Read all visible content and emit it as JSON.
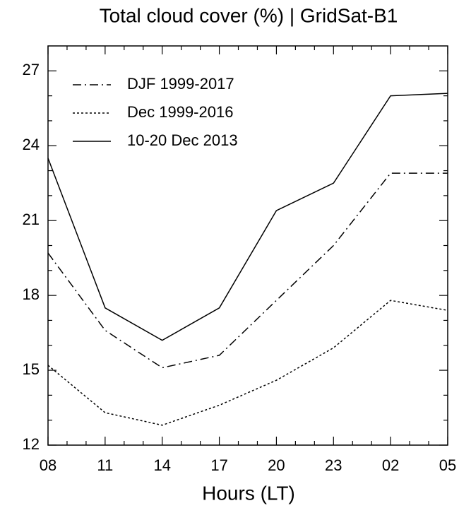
{
  "chart_data": {
    "type": "line",
    "title": "Total cloud cover (%) | GridSat-B1",
    "x_label": "Hours (LT)",
    "categories": [
      "08",
      "11",
      "14",
      "17",
      "20",
      "23",
      "02",
      "05"
    ],
    "series": [
      {
        "name": "DJF 1999-2017",
        "color": "#000000",
        "linestyle": "dashdot",
        "values": [
          19.7,
          16.6,
          15.1,
          15.6,
          17.8,
          20.0,
          22.9,
          22.9
        ]
      },
      {
        "name": "Dec 1999-2016",
        "color": "#000000",
        "linestyle": "dotted",
        "values": [
          15.2,
          13.3,
          12.8,
          13.6,
          14.6,
          15.9,
          17.8,
          17.4
        ]
      },
      {
        "name": "10-20 Dec 2013",
        "color": "#000000",
        "linestyle": "solid",
        "values": [
          23.5,
          17.5,
          16.2,
          17.5,
          21.4,
          22.5,
          26.0,
          26.1
        ]
      }
    ],
    "ylim": [
      12,
      28
    ],
    "yticks": [
      12,
      15,
      18,
      21,
      24,
      27
    ],
    "legend": "upper left",
    "grid": false
  }
}
